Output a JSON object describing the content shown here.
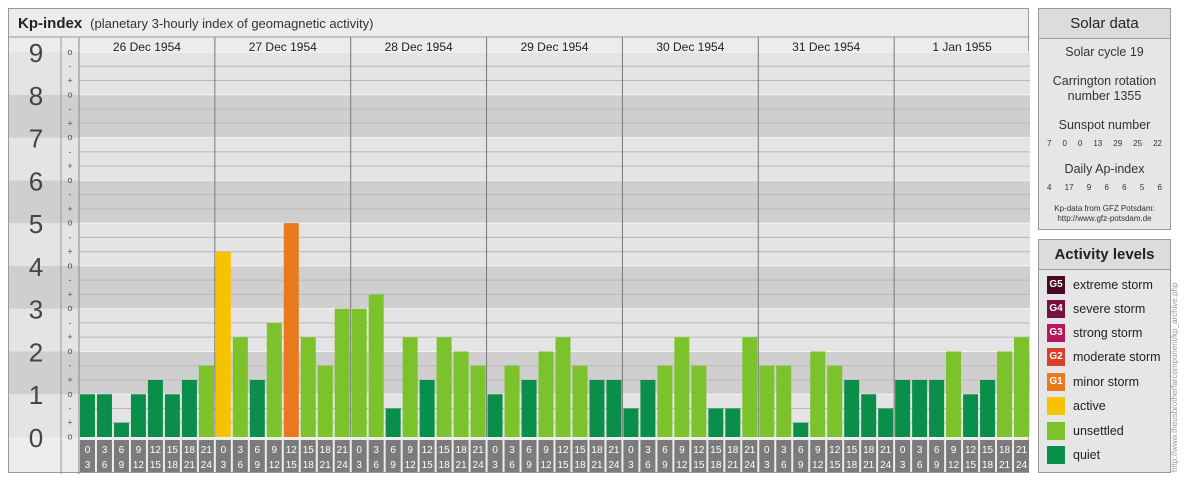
{
  "header": {
    "title": "Kp-index",
    "subtitle": "(planetary 3-hourly index of geomagnetic activity)"
  },
  "chart_data": {
    "type": "bar",
    "title": "Kp-index",
    "subtitle": "(planetary 3-hourly index of geomagnetic activity)",
    "ylim": [
      0,
      9
    ],
    "y_ticks": [
      "0",
      "1",
      "2",
      "3",
      "4",
      "5",
      "6",
      "7",
      "8",
      "9"
    ],
    "minor_ticks": [
      "o",
      "+",
      "-"
    ],
    "days": [
      "26 Dec 1954",
      "27 Dec 1954",
      "28 Dec 1954",
      "29 Dec 1954",
      "30 Dec 1954",
      "31 Dec 1954",
      "1 Jan 1955"
    ],
    "interval_starts": [
      "0",
      "3",
      "6",
      "9",
      "12",
      "15",
      "18",
      "21"
    ],
    "interval_ends": [
      "3",
      "6",
      "9",
      "12",
      "15",
      "18",
      "21",
      "24"
    ],
    "values": [
      1.0,
      1.0,
      0.333,
      1.0,
      1.333,
      1.0,
      1.333,
      1.667,
      4.333,
      2.333,
      1.333,
      2.667,
      5.0,
      2.333,
      1.667,
      3.0,
      3.0,
      3.333,
      0.667,
      2.333,
      1.333,
      2.333,
      2.0,
      1.667,
      1.0,
      1.667,
      1.333,
      2.0,
      2.333,
      1.667,
      1.333,
      1.333,
      0.667,
      1.333,
      1.667,
      2.333,
      1.667,
      0.667,
      0.667,
      2.333,
      1.667,
      1.667,
      0.333,
      2.0,
      1.667,
      1.333,
      1.0,
      0.667,
      1.333,
      1.333,
      1.333,
      2.0,
      1.0,
      1.333,
      2.0,
      2.333
    ],
    "colors": {
      "quiet": "#0a8f4a",
      "unsettled": "#7cc22a",
      "active": "#f6c300",
      "minor_storm": "#e8791c"
    }
  },
  "solar": {
    "title": "Solar data",
    "cycle": "Solar cycle 19",
    "carrington_line1": "Carrington rotation",
    "carrington_line2": "number 1355",
    "sunspot_title": "Sunspot number",
    "sunspot_values": [
      "7",
      "0",
      "0",
      "13",
      "29",
      "25",
      "22"
    ],
    "ap_title": "Daily Ap-index",
    "ap_values": [
      "4",
      "17",
      "9",
      "6",
      "6",
      "5",
      "6"
    ],
    "source_line1": "Kp-data from GFZ Potsdam:",
    "source_line2": "http://www.gfz-potsdam.de"
  },
  "levels": {
    "title": "Activity levels",
    "items": [
      {
        "code": "G5",
        "label": "extreme storm",
        "color": "#4a0a24"
      },
      {
        "code": "G4",
        "label": "severe storm",
        "color": "#7a1040"
      },
      {
        "code": "G3",
        "label": "strong storm",
        "color": "#b8175c"
      },
      {
        "code": "G2",
        "label": "moderate storm",
        "color": "#d6402c"
      },
      {
        "code": "G1",
        "label": "minor storm",
        "color": "#e8791c"
      },
      {
        "code": "",
        "label": "active",
        "color": "#f6c300"
      },
      {
        "code": "",
        "label": "unsettled",
        "color": "#7cc22a"
      },
      {
        "code": "",
        "label": "quiet",
        "color": "#0a8f4a"
      }
    ]
  },
  "side_credit": "http://www.theusbrotherfarcomponent/kp_archive.php"
}
